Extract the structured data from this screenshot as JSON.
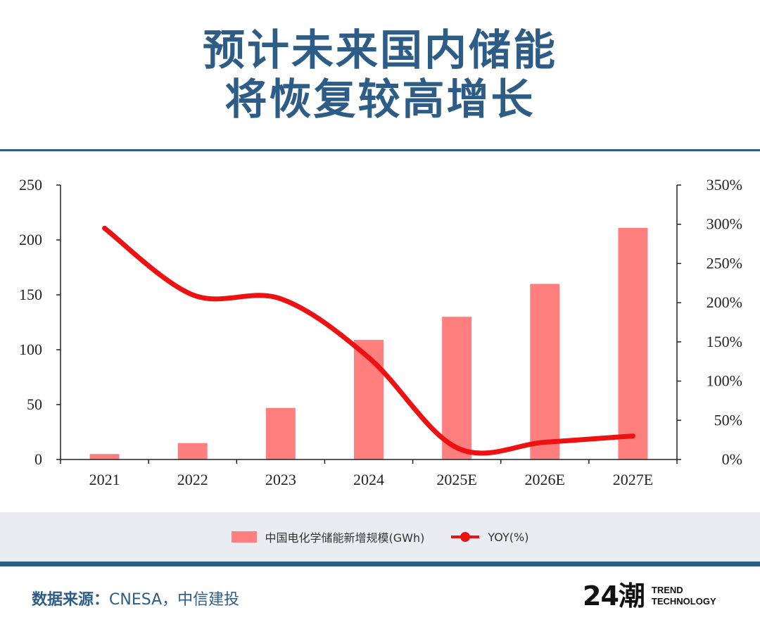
{
  "header": {
    "title_line1": "预计未来国内储能",
    "title_line2": "将恢复较高增长"
  },
  "chart_data": {
    "type": "bar",
    "categories": [
      "2021",
      "2022",
      "2023",
      "2024",
      "2025E",
      "2026E",
      "2027E"
    ],
    "series": [
      {
        "name": "中国电化学储能新增规模(GWh)",
        "type": "bar",
        "axis": "left",
        "values": [
          5,
          15,
          47,
          109,
          130,
          160,
          211
        ]
      },
      {
        "name": "YOY(%)",
        "type": "line",
        "axis": "right",
        "values": [
          295,
          210,
          205,
          130,
          15,
          22,
          30
        ]
      }
    ],
    "ylim_left": [
      0,
      250
    ],
    "yticks_left": [
      "0",
      "50",
      "100",
      "150",
      "200",
      "250"
    ],
    "ylim_right": [
      0,
      350
    ],
    "yticks_right": [
      "0%",
      "50%",
      "100%",
      "150%",
      "200%",
      "250%",
      "300%",
      "350%"
    ],
    "bar_color": "#ff7f7f",
    "line_color": "#ee1111",
    "legend_position": "bottom"
  },
  "legend": {
    "bar_label": "中国电化学储能新增规模(GWh)",
    "line_label": "YOY(%)"
  },
  "footer": {
    "source_label": "数据来源：",
    "source_text": "CNESA，中信建投",
    "logo_mark": "24潮",
    "logo_line1": "TREND",
    "logo_line2": "TECHNOLOGY"
  },
  "colors": {
    "brand_blue": "#2d5d86",
    "legend_band": "#e9edf2"
  }
}
